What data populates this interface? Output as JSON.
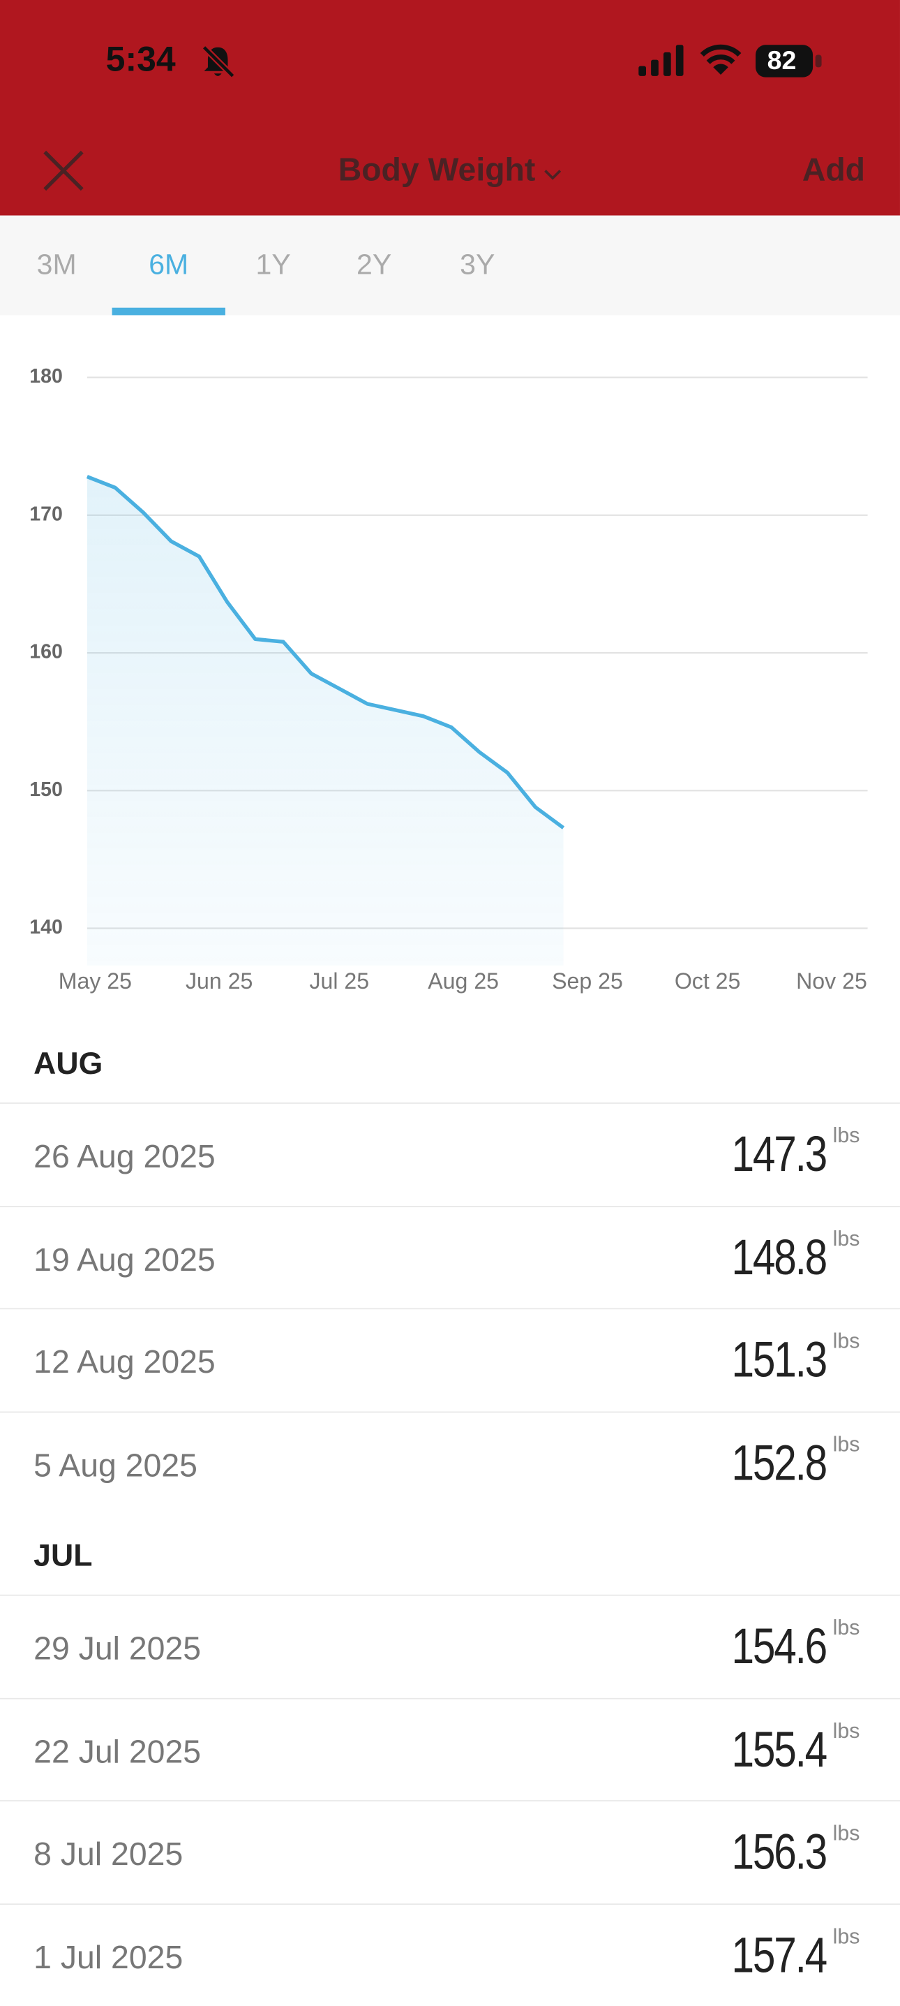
{
  "status_bar": {
    "time": "5:34",
    "battery": "82"
  },
  "header": {
    "title": "Body Weight",
    "action": "Add"
  },
  "tabs": [
    {
      "label": "3M"
    },
    {
      "label": "6M",
      "selected": true
    },
    {
      "label": "1Y"
    },
    {
      "label": "2Y"
    },
    {
      "label": "3Y"
    }
  ],
  "chart_data": {
    "type": "line",
    "area": true,
    "color": "#4ab0e0",
    "x": [
      "2025-04-29",
      "2025-05-06",
      "2025-05-13",
      "2025-05-20",
      "2025-05-27",
      "2025-06-03",
      "2025-06-10",
      "2025-06-17",
      "2025-06-24",
      "2025-07-01",
      "2025-07-08",
      "2025-07-22",
      "2025-07-29",
      "2025-08-05",
      "2025-08-12",
      "2025-08-19",
      "2025-08-26"
    ],
    "values": [
      172.8,
      172.0,
      170.2,
      168.1,
      167.0,
      163.7,
      161.0,
      160.8,
      158.5,
      157.4,
      156.3,
      155.4,
      154.6,
      152.8,
      151.3,
      148.8,
      147.3
    ],
    "xlim": [
      "2025-04-29",
      "2025-11-10"
    ],
    "xticks": [
      {
        "value": "2025-05-01",
        "label": "May 25"
      },
      {
        "value": "2025-06-01",
        "label": "Jun 25"
      },
      {
        "value": "2025-07-01",
        "label": "Jul 25"
      },
      {
        "value": "2025-08-01",
        "label": "Aug 25"
      },
      {
        "value": "2025-09-01",
        "label": "Sep 25"
      },
      {
        "value": "2025-10-01",
        "label": "Oct 25"
      },
      {
        "value": "2025-11-01",
        "label": "Nov 25"
      }
    ],
    "ylim": [
      137.3,
      180
    ],
    "yticks": [
      140,
      150,
      160,
      170,
      180
    ],
    "grid": true
  },
  "history": {
    "unit": "lbs",
    "groups": [
      {
        "month": "AUG",
        "entries": [
          {
            "date": "26 Aug 2025",
            "value": 147.3
          },
          {
            "date": "19 Aug 2025",
            "value": 148.8
          },
          {
            "date": "12 Aug 2025",
            "value": 151.3
          },
          {
            "date": "5 Aug 2025",
            "value": 152.8
          }
        ]
      },
      {
        "month": "JUL",
        "entries": [
          {
            "date": "29 Jul 2025",
            "value": 154.6
          },
          {
            "date": "22 Jul 2025",
            "value": 155.4
          },
          {
            "date": "8 Jul 2025",
            "value": 156.3
          },
          {
            "date": "1 Jul 2025",
            "value": 157.4
          }
        ]
      }
    ]
  }
}
